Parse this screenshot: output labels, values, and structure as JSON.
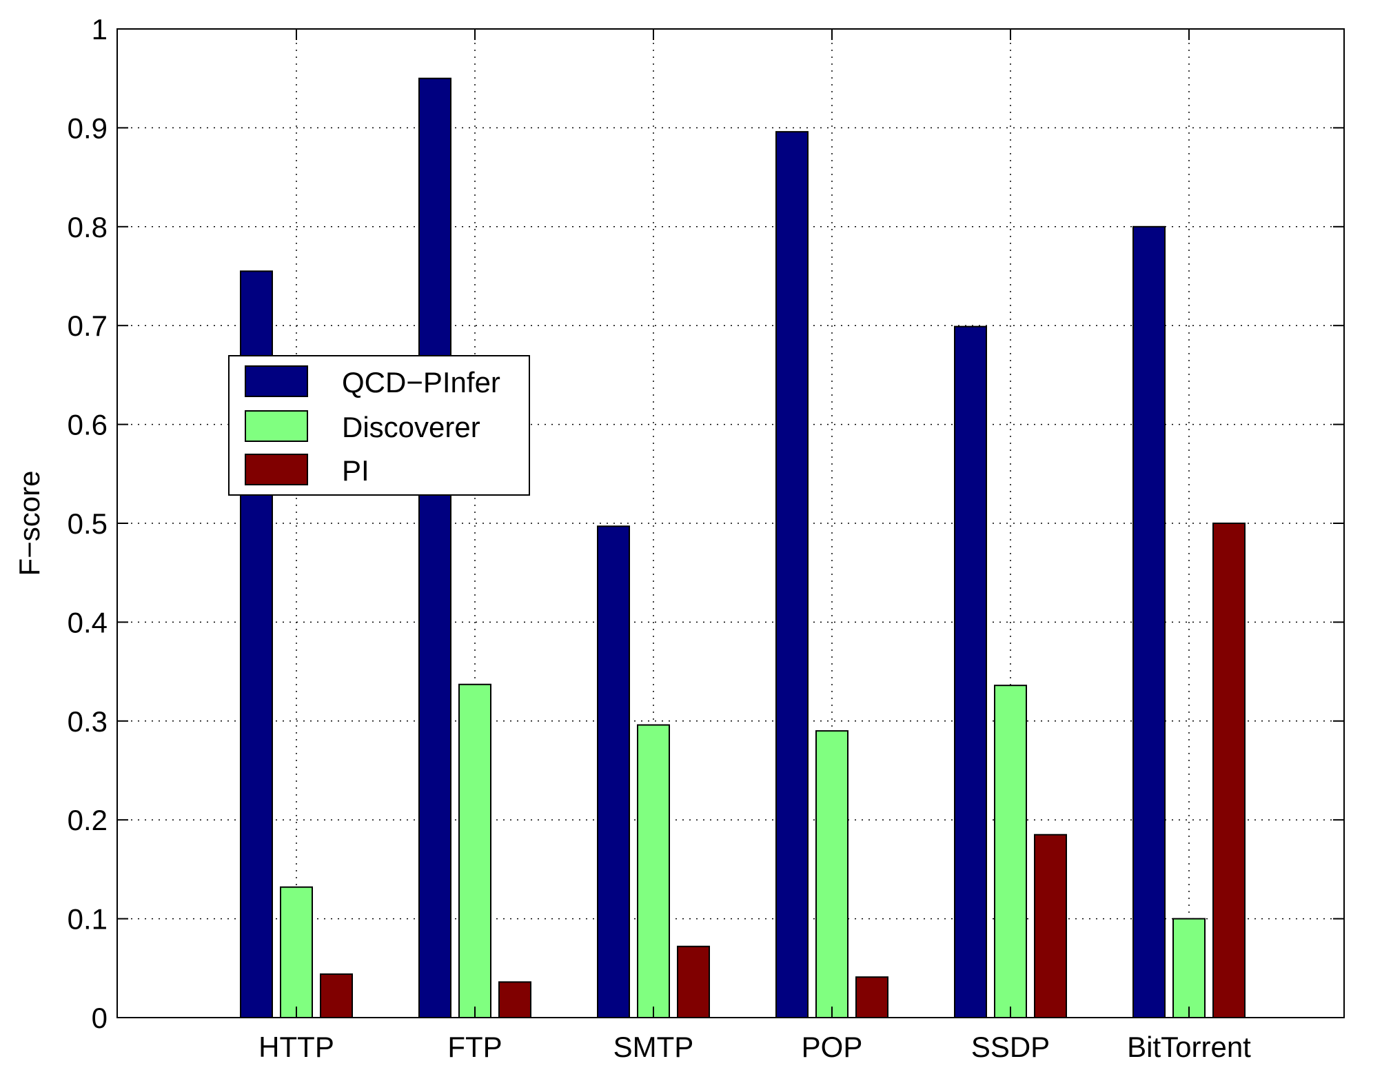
{
  "chart_data": {
    "type": "bar",
    "title": "",
    "xlabel": "",
    "ylabel": "F−score",
    "ylim": [
      0,
      1
    ],
    "yticks": [
      0,
      0.1,
      0.2,
      0.3,
      0.4,
      0.5,
      0.6,
      0.7,
      0.8,
      0.9,
      1
    ],
    "ytick_labels": [
      "0",
      "0.1",
      "0.2",
      "0.3",
      "0.4",
      "0.5",
      "0.6",
      "0.7",
      "0.8",
      "0.9",
      "1"
    ],
    "grid": true,
    "legend_position": "left",
    "categories": [
      "HTTP",
      "FTP",
      "SMTP",
      "POP",
      "SSDP",
      "BitTorrent"
    ],
    "series": [
      {
        "name": "QCD−PInfer",
        "color": "#000080",
        "values": [
          0.755,
          0.95,
          0.497,
          0.896,
          0.699,
          0.8
        ]
      },
      {
        "name": "Discoverer",
        "color": "#80ff80",
        "values": [
          0.132,
          0.337,
          0.296,
          0.29,
          0.336,
          0.1
        ]
      },
      {
        "name": "PI",
        "color": "#800000",
        "values": [
          0.044,
          0.036,
          0.072,
          0.041,
          0.185,
          0.5
        ]
      }
    ]
  }
}
